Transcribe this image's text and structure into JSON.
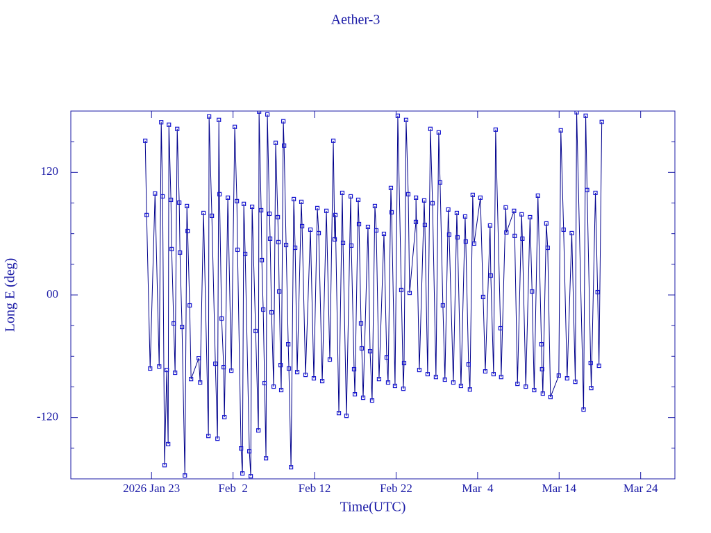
{
  "chart_data": {
    "type": "line",
    "title": "Aether-3",
    "xlabel": "Time(UTC)",
    "ylabel": "Long E (deg)",
    "color": "#00008b",
    "marker_color": "#1515d0",
    "xlim": [
      13.1,
      87.2
    ],
    "ylim": [
      -180,
      180
    ],
    "xticks": [
      {
        "value": 23,
        "label": "2026 Jan 23"
      },
      {
        "value": 33,
        "label": "Feb  2"
      },
      {
        "value": 43,
        "label": "Feb 12"
      },
      {
        "value": 53,
        "label": "Feb 22"
      },
      {
        "value": 63,
        "label": "Mar  4"
      },
      {
        "value": 73,
        "label": "Mar 14"
      },
      {
        "value": 83,
        "label": "Mar 24"
      }
    ],
    "yticks": [
      -120,
      {
        "value": 0,
        "label": "00"
      },
      120
    ],
    "yminorticks": [
      -150,
      -90,
      -60,
      -30,
      30,
      60,
      90,
      150
    ],
    "x": [
      22.23,
      22.4,
      22.83,
      23.43,
      23.94,
      24.19,
      24.36,
      24.6,
      24.87,
      25.04,
      25.13,
      25.38,
      25.47,
      25.72,
      25.89,
      26.15,
      26.4,
      26.49,
      26.74,
      27.09,
      27.34,
      27.43,
      27.68,
      27.85,
      28.79,
      28.96,
      29.38,
      29.98,
      30.06,
      30.4,
      30.83,
      31.09,
      31.26,
      31.34,
      31.6,
      31.85,
      31.94,
      32.36,
      32.79,
      33.21,
      33.47,
      33.55,
      33.98,
      34.15,
      34.32,
      34.49,
      35,
      35.17,
      35.34,
      35.77,
      36.11,
      36.19,
      36.45,
      36.53,
      36.7,
      36.87,
      37.04,
      37.21,
      37.47,
      37.55,
      37.72,
      37.98,
      38.23,
      38.49,
      38.57,
      38.66,
      38.83,
      38.91,
      39.17,
      39.26,
      39.51,
      39.77,
      39.85,
      40.11,
      40.45,
      40.62,
      40.87,
      41.38,
      41.47,
      41.89,
      42.49,
      42.91,
      43.34,
      43.51,
      43.94,
      44.45,
      44.87,
      45.3,
      45.47,
      45.55,
      45.98,
      46.4,
      46.49,
      46.91,
      47.43,
      47.51,
      47.85,
      47.94,
      48.36,
      48.45,
      48.7,
      48.79,
      48.96,
      49.55,
      49.81,
      50.06,
      50.4,
      50.57,
      50.91,
      51.51,
      51.85,
      52.02,
      52.36,
      52.45,
      52.87,
      53.21,
      53.64,
      53.89,
      53.98,
      54.23,
      54.49,
      54.66,
      55.43,
      55.44,
      55.85,
      56.45,
      56.53,
      56.87,
      57.21,
      57.47,
      57.89,
      58.23,
      58.4,
      58.74,
      58.99,
      59.4,
      59.51,
      60.02,
      60.45,
      60.53,
      60.96,
      61.47,
      61.55,
      61.89,
      62.06,
      62.4,
      62.57,
      63.34,
      63.68,
      63.94,
      64.53,
      64.62,
      64.96,
      65.21,
      65.81,
      65.89,
      66.45,
      66.53,
      67.47,
      67.55,
      67.89,
      68.4,
      68.49,
      68.91,
      69.43,
      69.68,
      69.94,
      70.4,
      70.83,
      70.91,
      71,
      71.43,
      71.6,
      71.94,
      72.96,
      73.21,
      73.55,
      73.98,
      74.55,
      74.98,
      75.15,
      76,
      76.26,
      76.43,
      76.87,
      76.94,
      77.45,
      77.72,
      77.89,
      78.23
    ],
    "values": [
      150.9,
      78.2,
      -72,
      99.3,
      -70,
      169,
      96.5,
      -166.6,
      -73.4,
      -146,
      166.6,
      93.1,
      44.9,
      -27.9,
      -76.1,
      162.5,
      90.4,
      41.5,
      -31.3,
      -176.7,
      87,
      62.5,
      -10.2,
      -82.3,
      -61.9,
      -85.7,
      80.2,
      -138,
      174.7,
      77.5,
      -67.3,
      -140.7,
      171.3,
      98.6,
      -23.1,
      -70.7,
      -119.6,
      95.2,
      -74.1,
      164.5,
      91.8,
      44.2,
      -150.2,
      -174.7,
      89.1,
      40.1,
      -153,
      -177.4,
      86.3,
      -35.3,
      -132.6,
      179.5,
      82.9,
      34,
      -14.3,
      -86.3,
      -159.8,
      176.7,
      79.5,
      55.1,
      -17,
      -89.7,
      148.9,
      76.1,
      51.7,
      3.4,
      -68.7,
      -93.1,
      170,
      146.2,
      48.9,
      -48.3,
      -72,
      -168.6,
      93.8,
      46.2,
      -75.5,
      91.1,
      67.3,
      -78.2,
      63.9,
      -81.6,
      85,
      60.5,
      -84.3,
      82.3,
      -63.2,
      150.9,
      54.4,
      78.2,
      -115.6,
      99.9,
      51,
      -118.3,
      96.5,
      48.3,
      -72.7,
      -97.2,
      93.1,
      69.3,
      -27.9,
      -52.3,
      -100.6,
      66.6,
      -55.1,
      -103.3,
      87,
      63.2,
      -82.3,
      59.8,
      -61.2,
      -85.7,
      104.7,
      80.9,
      -89,
      175.4,
      4.8,
      -91.8,
      -66.6,
      171.3,
      98.6,
      2,
      71.4,
      95.2,
      -73.4,
      92.5,
      68.6,
      -77.5,
      162.5,
      89.8,
      -80.3,
      159.1,
      110.1,
      -10.2,
      -82.9,
      83.6,
      59.1,
      -85.7,
      80.2,
      56.4,
      -89,
      76.8,
      52.3,
      -68,
      -92.5,
      97.9,
      50.3,
      95.2,
      -2,
      -74.8,
      68,
      19,
      -77.5,
      161.8,
      -32.6,
      -80.3,
      85.7,
      61.2,
      82.3,
      57.8,
      -87,
      78.9,
      55.1,
      -89.7,
      76.1,
      3.4,
      -93.1,
      97.2,
      -48.3,
      -72.7,
      -96.5,
      70,
      46.2,
      -99.9,
      -78.9,
      161.1,
      63.9,
      -81.6,
      60.5,
      -85,
      178.8,
      -112.2,
      175.4,
      102.7,
      -66.6,
      -91.1,
      99.9,
      2.7,
      -69.3,
      169.3
    ]
  }
}
